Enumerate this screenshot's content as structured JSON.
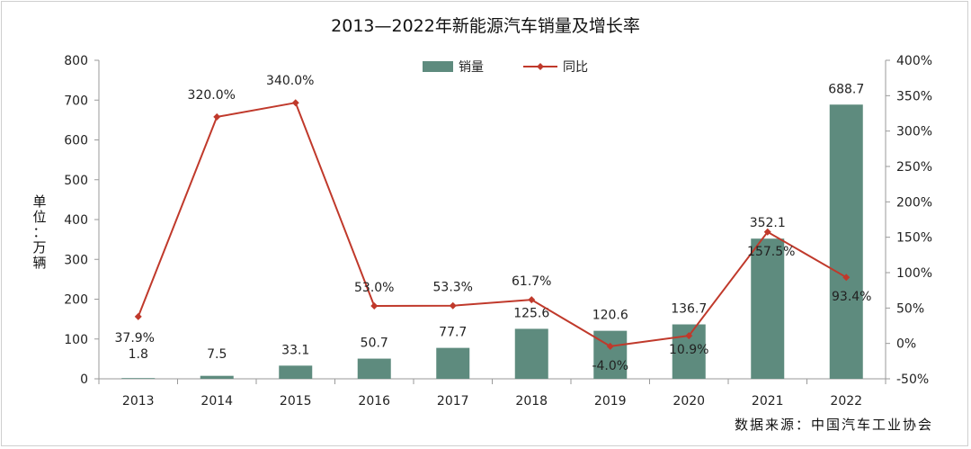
{
  "chart_data": {
    "type": "bar",
    "title": "2013—2022年新能源汽车销量及增长率",
    "ylabel": "单位：万辆",
    "y2label": "",
    "source": "数据来源：中国汽车工业协会",
    "categories": [
      "2013",
      "2014",
      "2015",
      "2016",
      "2017",
      "2018",
      "2019",
      "2020",
      "2021",
      "2022"
    ],
    "series": [
      {
        "name": "销量",
        "type": "bar",
        "axis": "left",
        "color": "#5e8b7e",
        "values": [
          1.8,
          7.5,
          33.1,
          50.7,
          77.7,
          125.6,
          120.6,
          136.7,
          352.1,
          688.7
        ],
        "labels": [
          "1.8",
          "7.5",
          "33.1",
          "50.7",
          "77.7",
          "125.6",
          "120.6",
          "136.7",
          "352.1",
          "688.7"
        ]
      },
      {
        "name": "同比",
        "type": "line",
        "axis": "right",
        "color": "#c0392b",
        "values": [
          37.9,
          320.0,
          340.0,
          53.0,
          53.3,
          61.7,
          -4.0,
          10.9,
          157.5,
          93.4
        ],
        "labels": [
          "37.9%",
          "320.0%",
          "340.0%",
          "53.0%",
          "53.3%",
          "61.7%",
          "-4.0%",
          "10.9%",
          "157.5%",
          "93.4%"
        ]
      }
    ],
    "ylim": [
      0,
      800
    ],
    "yticks": [
      "0",
      "100",
      "200",
      "300",
      "400",
      "500",
      "600",
      "700",
      "800"
    ],
    "y2lim": [
      -50,
      400
    ],
    "y2ticks": [
      "-50%",
      "0%",
      "50%",
      "100%",
      "150%",
      "200%",
      "250%",
      "300%",
      "350%",
      "400%"
    ],
    "legend_position": "top-center",
    "grid": false
  }
}
